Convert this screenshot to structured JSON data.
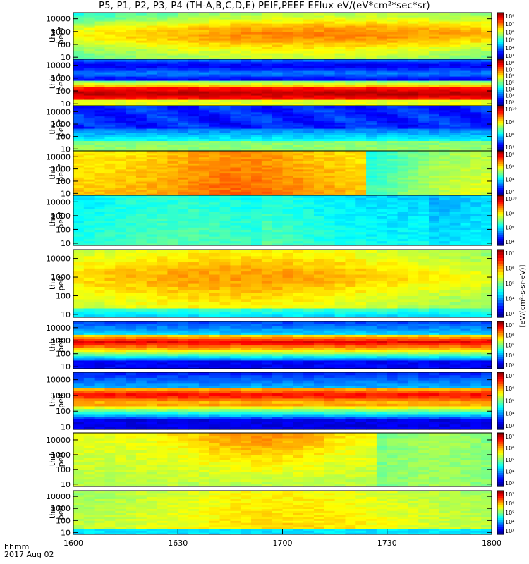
{
  "title": "P5, P1, P2, P3, P4 (TH-A,B,C,D,E) PEIF,PEEF EFlux eV/(eV*cm²*sec*sr)",
  "x_label_line1": "hhmm",
  "x_label_line2": "2017 Aug 02",
  "colorbar_unit_label": "[eV/(cm²-s-sr-eV)]",
  "chart_data": {
    "type": "heatmap",
    "x_tick_labels": [
      "1600",
      "1630",
      "1700",
      "1730",
      "1800"
    ],
    "x_range": [
      "1600",
      "1800"
    ],
    "y_scale": "log",
    "y_range_eV": [
      7,
      30000
    ],
    "panels": [
      {
        "probe": "tha",
        "species": "peef",
        "ylabel": [
          "tha",
          "peef"
        ],
        "yticks": [
          "10",
          "100",
          "1000",
          "10000"
        ],
        "cbar_ticks": [
          "10⁸",
          "10⁷",
          "10⁶",
          "10⁵",
          "10⁴",
          "10³"
        ],
        "profile": "green_yellow_center"
      },
      {
        "probe": "thb",
        "species": "peef",
        "ylabel": [
          "thb",
          "peef"
        ],
        "yticks": [
          "10",
          "100",
          "1000",
          "10000"
        ],
        "cbar_ticks": [
          "10⁸",
          "10⁷",
          "10⁶",
          "10⁵",
          "10⁴",
          "10³",
          "10²"
        ],
        "profile": "red_band_low"
      },
      {
        "probe": "thc",
        "species": "peef",
        "ylabel": [
          "thc",
          "peef"
        ],
        "yticks": [
          "10",
          "100",
          "1000",
          "10000"
        ],
        "cbar_ticks": [
          "10¹⁰",
          "10⁸",
          "10⁶",
          "10⁴"
        ],
        "profile": "blue_top_green_bottom"
      },
      {
        "probe": "thd",
        "species": "peef",
        "ylabel": [
          "thd",
          "peef"
        ],
        "yticks": [
          "10",
          "100",
          "1000",
          "10000"
        ],
        "cbar_ticks": [
          "10⁸",
          "10⁶",
          "10⁴",
          "10²"
        ],
        "profile": "orange_then_green"
      },
      {
        "probe": "the",
        "species": "peef",
        "ylabel": [
          "the",
          "peef"
        ],
        "yticks": [
          "10",
          "100",
          "1000",
          "10000"
        ],
        "cbar_ticks": [
          "10¹⁰",
          "10⁸",
          "10⁶",
          "10⁴"
        ],
        "profile": "cyan_green"
      },
      {
        "probe": "tha",
        "species": "peif",
        "ylabel": [
          "tha",
          "peif"
        ],
        "yticks": [
          "10",
          "100",
          "1000",
          "10000"
        ],
        "cbar_ticks": [
          "10⁷",
          "10⁶",
          "10⁵",
          "10⁴",
          "10³"
        ],
        "profile": "ion_yellow"
      },
      {
        "probe": "thb",
        "species": "peif",
        "ylabel": [
          "thb",
          "peif"
        ],
        "yticks": [
          "10",
          "100",
          "1000",
          "10000"
        ],
        "cbar_ticks": [
          "10⁷",
          "10⁶",
          "10⁵",
          "10⁴",
          "10³"
        ],
        "profile": "ion_red_band"
      },
      {
        "probe": "thc",
        "species": "peif",
        "ylabel": [
          "thc",
          "peif"
        ],
        "yticks": [
          "10",
          "100",
          "1000",
          "10000"
        ],
        "cbar_ticks": [
          "10⁷",
          "10⁶",
          "10⁵",
          "10⁴",
          "10³"
        ],
        "profile": "ion_red_band2"
      },
      {
        "probe": "thd",
        "species": "peif",
        "ylabel": [
          "thd",
          "peif"
        ],
        "yticks": [
          "10",
          "100",
          "1000",
          "10000"
        ],
        "cbar_ticks": [
          "10⁷",
          "10⁶",
          "10⁵",
          "10⁴",
          "10³"
        ],
        "profile": "ion_orange_then_green"
      },
      {
        "probe": "the",
        "species": "peif",
        "ylabel": [
          "the",
          "peif"
        ],
        "yticks": [
          "10",
          "100",
          "1000",
          "10000"
        ],
        "cbar_ticks": [
          "10⁷",
          "10⁶",
          "10⁵",
          "10⁴",
          "10³"
        ],
        "profile": "ion_yellow2"
      }
    ]
  }
}
